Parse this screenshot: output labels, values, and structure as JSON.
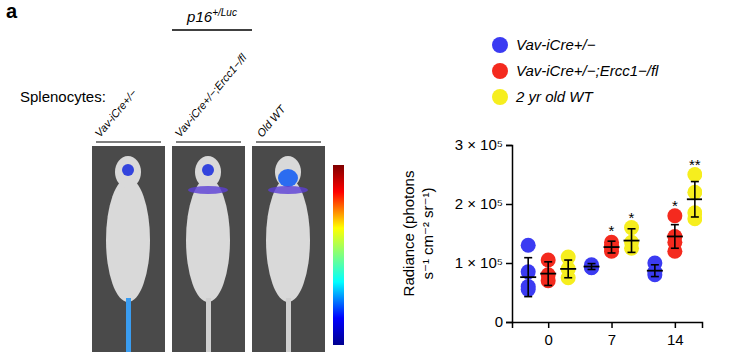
{
  "panel_label": "a",
  "figure": {
    "row_label": "Splenocytes:",
    "group_label": {
      "text": "p16",
      "superscript": "+/Luc"
    },
    "image_labels": [
      "Vav-iCre+/−",
      "Vav-iCre+/−;Ercc1−/fl",
      "Old WT"
    ]
  },
  "chart_data": {
    "type": "scatter",
    "ylabel": [
      "Radiance (photons",
      "s⁻¹ cm⁻² sr⁻¹)"
    ],
    "x": [
      0,
      7,
      14
    ],
    "xlim": [
      -4,
      17
    ],
    "xticks": [
      0,
      7,
      14
    ],
    "ylim": [
      0,
      300000
    ],
    "yticks": [
      0,
      {
        "value": 100000,
        "label": "1 × 10⁵"
      },
      {
        "value": 200000,
        "label": "2 × 10⁵"
      },
      {
        "value": 300000,
        "label": "3 × 10⁵"
      }
    ],
    "legend": "top",
    "series": [
      {
        "name": "Vav-iCre+/−",
        "color": "#3b3bf2",
        "marker": "circle",
        "values": [
          76000,
          94000,
          87000
        ],
        "errors": [
          33000,
          5000,
          10000
        ],
        "points": [
          [
            130000,
            85000,
            60000,
            55000
          ],
          [
            97000,
            93000,
            92000
          ],
          [
            100000,
            85000,
            80000
          ]
        ],
        "significance": [
          null,
          null,
          null
        ]
      },
      {
        "name": "Vav-iCre+/−;Ercc1−/fl",
        "color": "#f42a1e",
        "marker": "circle",
        "values": [
          82000,
          127000,
          145000
        ],
        "errors": [
          20000,
          10000,
          20000
        ],
        "points": [
          [
            105000,
            80000,
            70000
          ],
          [
            130000,
            125000,
            135000,
            120000
          ],
          [
            180000,
            145000,
            135000,
            120000
          ]
        ],
        "significance": [
          null,
          "*",
          "*"
        ]
      },
      {
        "name": "2 yr old WT",
        "color": "#f6ee1e",
        "marker": "circle",
        "values": [
          90000,
          138000,
          208000
        ],
        "errors": [
          15000,
          20000,
          30000
        ],
        "points": [
          [
            110000,
            90000,
            75000
          ],
          [
            160000,
            135000,
            125000
          ],
          [
            250000,
            220000,
            185000,
            175000
          ]
        ],
        "significance": [
          null,
          "*",
          "**"
        ]
      }
    ]
  }
}
